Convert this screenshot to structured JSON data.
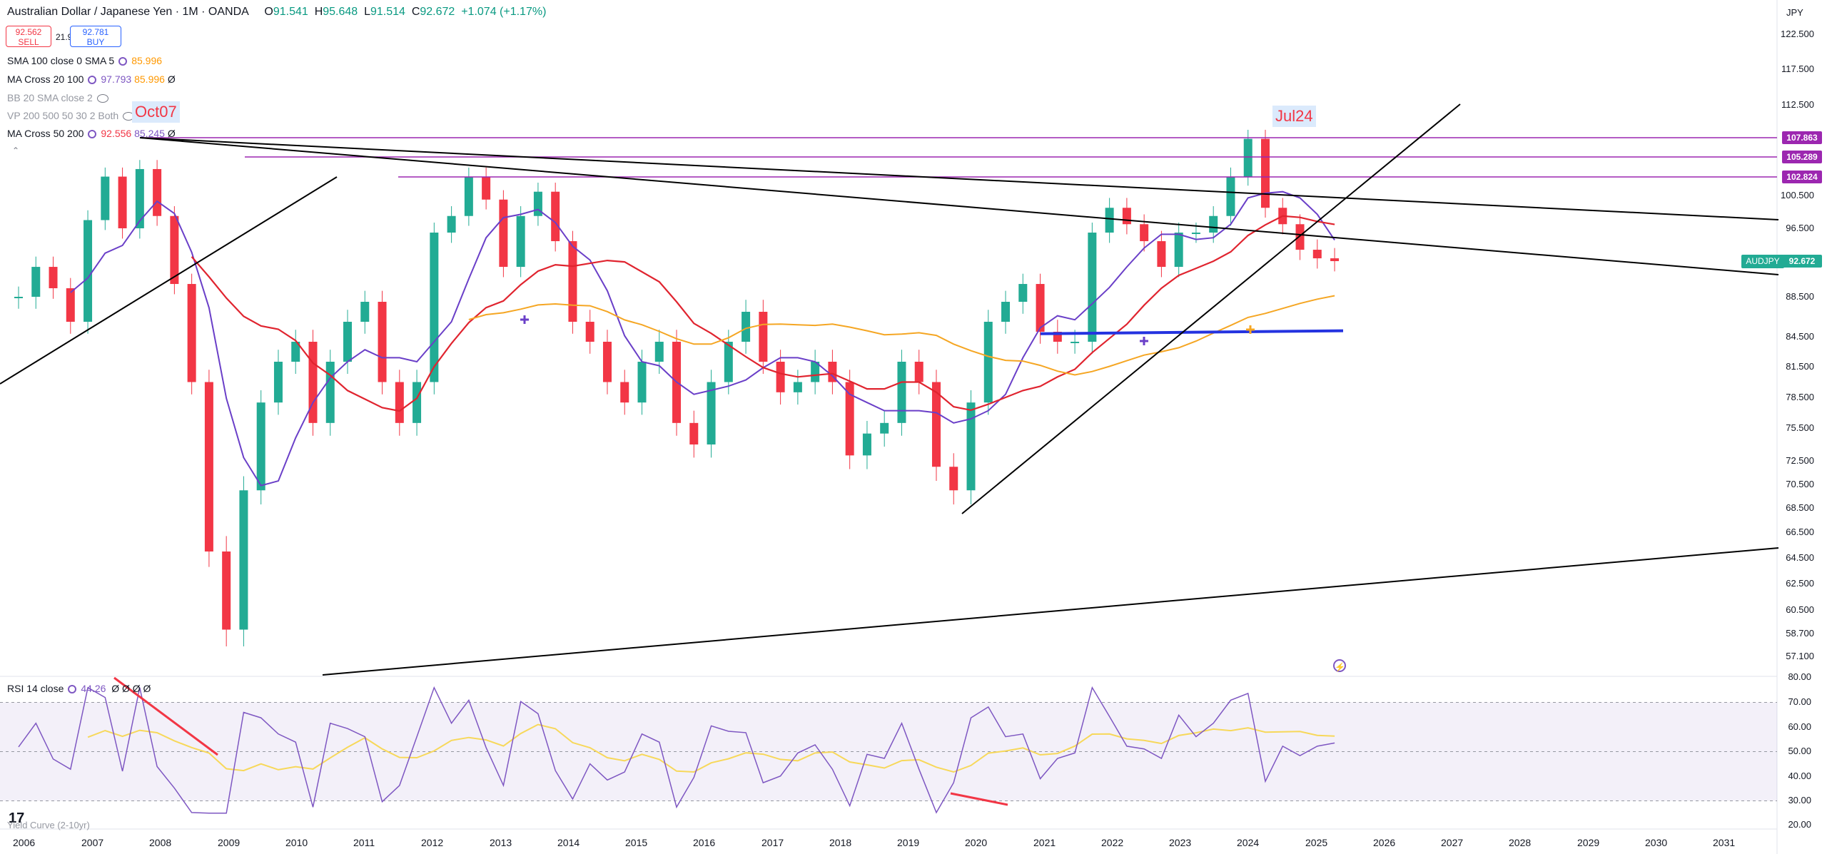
{
  "header": {
    "title": "Australian Dollar / Japanese Yen · 1M · OANDA",
    "open_label": "O",
    "open": "91.541",
    "high_label": "H",
    "high": "95.648",
    "low_label": "L",
    "low": "91.514",
    "close_label": "C",
    "close": "92.672",
    "change": "+1.074 (+1.17%)"
  },
  "trade": {
    "sell_price": "92.562",
    "sell_label": "SELL",
    "spread": "21.9",
    "buy_price": "92.781",
    "buy_label": "BUY"
  },
  "indicators": [
    {
      "name": "SMA 100 close 0 SMA 5",
      "v1": "85.996",
      "v2": ""
    },
    {
      "name": "MA Cross 20 100",
      "v1": "97.793",
      "v2": "85.996",
      "v3": "Ø"
    },
    {
      "name": "BB 20 SMA close 2",
      "v1": "",
      "v2": ""
    },
    {
      "name": "VP 200 500 50 30 2 Both",
      "v1": "",
      "v2": ""
    },
    {
      "name": "MA Cross 50 200",
      "v1": "92.556",
      "v2": "85.245",
      "v3": "Ø"
    }
  ],
  "currency": "JPY",
  "y_axis": [
    "122.500",
    "117.500",
    "112.500",
    "107.863",
    "105.289",
    "102.824",
    "100.500",
    "96.500",
    "92.672",
    "88.500",
    "84.500",
    "81.500",
    "78.500",
    "75.500",
    "72.500",
    "70.500",
    "68.500",
    "66.500",
    "64.500",
    "62.500",
    "60.500",
    "58.700",
    "57.100"
  ],
  "price_tags": {
    "t1": "107.863",
    "t2": "105.289",
    "t3": "102.824"
  },
  "symbol_tag": {
    "symbol": "AUDJPY",
    "price": "92.672"
  },
  "annotations": {
    "left": "Oct07",
    "right": "Jul24"
  },
  "rsi": {
    "label": "RSI 14 close",
    "value": "44.26",
    "smoothing_value": "",
    "extra": "Ø Ø Ø Ø",
    "levels": [
      "80.00",
      "70.00",
      "60.00",
      "50.00",
      "40.00",
      "30.00",
      "20.00"
    ]
  },
  "yield_label": "Yield Curve (2-10yr)",
  "x_axis": [
    "2006",
    "2007",
    "2008",
    "2009",
    "2010",
    "2011",
    "2012",
    "2013",
    "2014",
    "2015",
    "2016",
    "2017",
    "2018",
    "2019",
    "2020",
    "2021",
    "2022",
    "2023",
    "2024",
    "2025",
    "2026",
    "2027",
    "2028",
    "2029",
    "2030",
    "2031"
  ],
  "colors": {
    "up": "#22ab94",
    "down": "#f23645",
    "ma_purple": "#6a3fc8",
    "ma_red": "#e0242f",
    "ma_orange": "#f5a623",
    "resistance": "#9c27b0",
    "support_blue": "#2433e0",
    "rsi_line": "#7e57c2",
    "rsi_signal": "#f7d85a"
  },
  "chart_data": {
    "type": "candlestick",
    "series": [
      {
        "name": "price",
        "values": [
          88.5,
          92,
          89.5,
          86,
          97.5,
          103,
          96.5,
          104,
          98,
          90,
          80,
          65,
          59,
          70,
          78,
          82,
          84,
          76,
          82,
          86,
          88,
          80,
          76,
          80,
          96,
          98,
          103,
          100,
          92,
          98,
          101,
          95,
          86,
          84,
          80,
          78,
          82,
          84,
          76,
          74,
          80,
          84,
          87,
          82,
          79,
          80,
          82,
          80,
          73,
          75,
          76,
          82,
          80,
          72,
          70,
          78,
          86,
          88,
          90,
          85,
          84,
          84,
          96,
          99,
          97,
          95,
          92,
          96,
          96,
          98,
          103,
          108,
          99,
          97,
          94,
          93,
          92.672
        ]
      }
    ],
    "ylim": [
      55,
      125
    ],
    "xlim": [
      "2006",
      "2031"
    ]
  }
}
